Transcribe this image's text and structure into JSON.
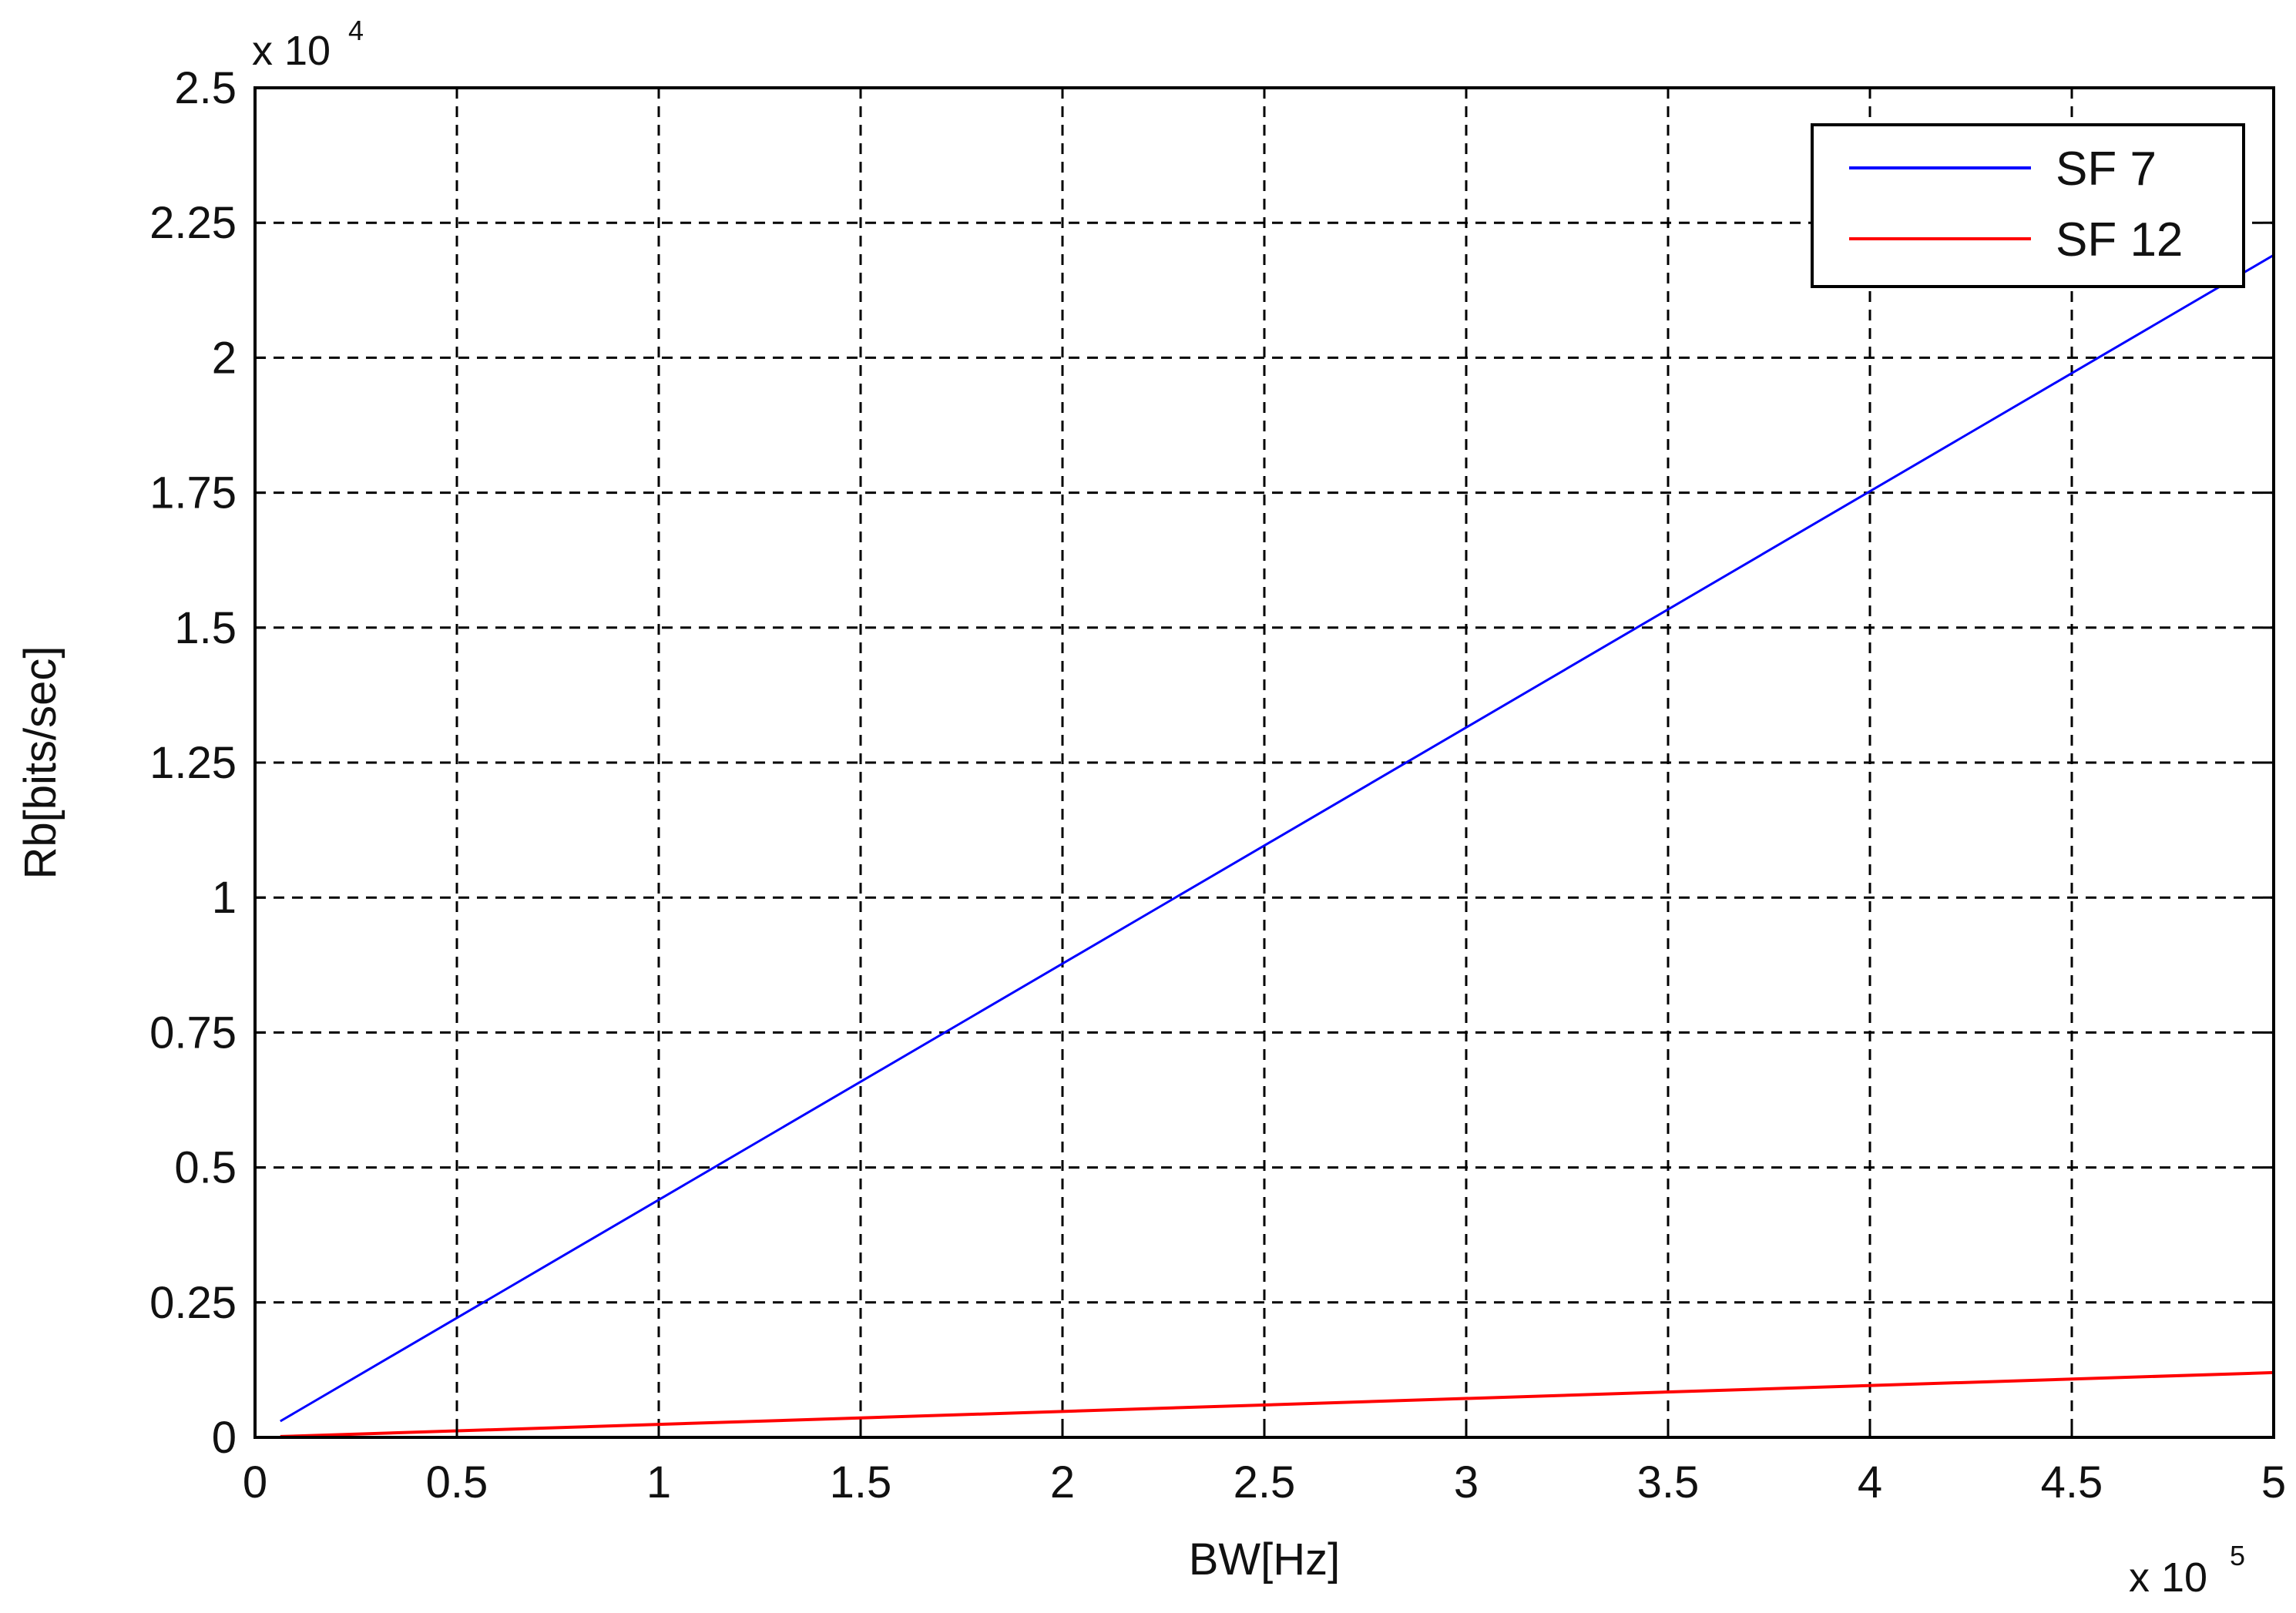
{
  "chart_data": {
    "type": "line",
    "xlabel": "BW[Hz]",
    "ylabel": "Rb[bits/sec]",
    "x_multiplier": {
      "base": "x 10",
      "exponent": "5"
    },
    "y_multiplier": {
      "base": "x 10",
      "exponent": "4"
    },
    "xlim": [
      0,
      5
    ],
    "ylim": [
      0,
      2.5
    ],
    "x_ticks": [
      0,
      0.5,
      1,
      1.5,
      2,
      2.5,
      3,
      3.5,
      4,
      4.5,
      5
    ],
    "x_tick_labels": [
      "0",
      "0.5",
      "1",
      "1.5",
      "2",
      "2.5",
      "3",
      "3.5",
      "4",
      "4.5",
      "5"
    ],
    "y_ticks": [
      0,
      0.25,
      0.5,
      0.75,
      1,
      1.25,
      1.5,
      1.75,
      2,
      2.25,
      2.5
    ],
    "y_tick_labels": [
      "0",
      "0.25",
      "0.5",
      "0.75",
      "1",
      "1.25",
      "1.5",
      "1.75",
      "2",
      "2.25",
      "2.5"
    ],
    "grid": true,
    "legend_position": "top-right",
    "series": [
      {
        "name": "SF 7",
        "color": "#0000ff",
        "x": [
          0.0625,
          5
        ],
        "y": [
          0.03,
          2.19
        ]
      },
      {
        "name": "SF 12",
        "color": "#ff0000",
        "x": [
          0.0625,
          5
        ],
        "y": [
          0.0015,
          0.12
        ]
      }
    ]
  }
}
